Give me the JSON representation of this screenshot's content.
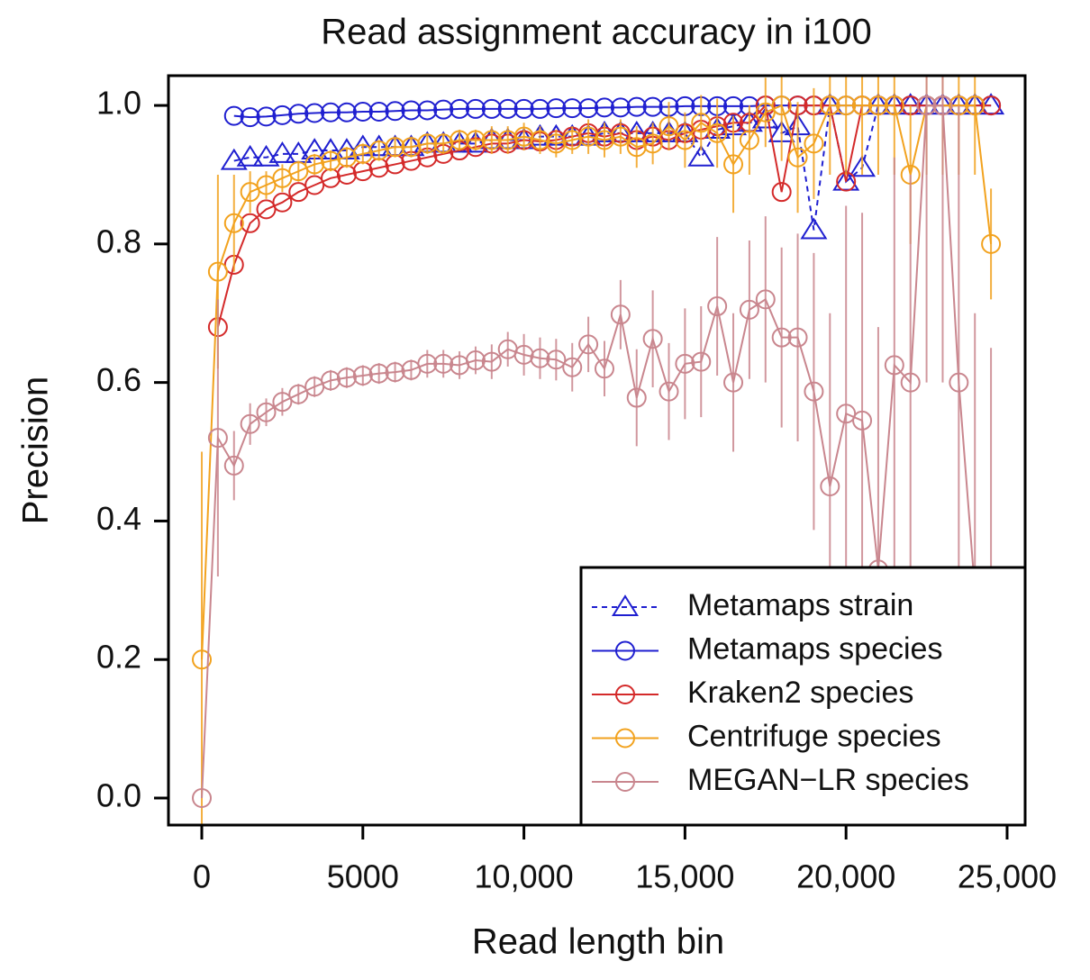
{
  "chart_data": {
    "type": "line",
    "title": "Read assignment accuracy in  i100",
    "xlabel": "Read length bin",
    "ylabel": "Precision",
    "x": [
      0,
      500,
      1000,
      1500,
      2000,
      2500,
      3000,
      3500,
      4000,
      4500,
      5000,
      5500,
      6000,
      6500,
      7000,
      7500,
      8000,
      8500,
      9000,
      9500,
      10000,
      10500,
      11000,
      11500,
      12000,
      12500,
      13000,
      13500,
      14000,
      14500,
      15000,
      15500,
      16000,
      16500,
      17000,
      17500,
      18000,
      18500,
      19000,
      19500,
      20000,
      20500,
      21000,
      21500,
      22000,
      22500,
      23000,
      23500,
      24000,
      24500
    ],
    "xlim": [
      -1035,
      25560
    ],
    "ylim": [
      -0.039,
      1.043
    ],
    "xticks": [
      0,
      5000,
      {
        "value": 10000,
        "label": "10,000"
      },
      {
        "value": 15000,
        "label": "15,000"
      },
      {
        "value": 20000,
        "label": "20,000"
      },
      {
        "value": 25000,
        "label": "25,000"
      }
    ],
    "yticks": [
      {
        "value": 0,
        "label": "0.0"
      },
      0.2,
      0.4,
      0.6,
      0.8,
      {
        "value": 1,
        "label": "1.0"
      }
    ],
    "legend": "bottom-right",
    "series": [
      {
        "name": "Metamaps strain",
        "color": "#1f1fd0",
        "marker": "triangle",
        "linestyle": "dashed",
        "values": [
          null,
          null,
          0.92,
          0.925,
          0.925,
          0.93,
          0.93,
          0.935,
          0.935,
          0.935,
          0.94,
          0.94,
          0.94,
          0.94,
          0.945,
          0.945,
          0.945,
          0.945,
          0.95,
          0.95,
          0.95,
          0.955,
          0.955,
          0.955,
          0.955,
          0.96,
          0.96,
          0.96,
          0.96,
          0.96,
          0.96,
          0.925,
          0.965,
          0.97,
          0.975,
          0.98,
          0.96,
          0.97,
          0.82,
          1.0,
          0.89,
          0.91,
          1.0,
          1.0,
          1.0,
          1.0,
          1.0,
          1.0,
          1.0,
          1.0
        ]
      },
      {
        "name": "Metamaps species",
        "color": "#1f1fd0",
        "marker": "circle",
        "linestyle": "solid",
        "values": [
          null,
          null,
          0.985,
          0.983,
          0.984,
          0.986,
          0.988,
          0.989,
          0.99,
          0.99,
          0.991,
          0.991,
          0.992,
          0.993,
          0.993,
          0.994,
          0.995,
          0.995,
          0.995,
          0.995,
          0.995,
          0.995,
          0.996,
          0.996,
          0.996,
          0.997,
          0.997,
          0.998,
          0.998,
          0.998,
          0.999,
          0.999,
          0.999,
          0.999,
          0.999,
          1.0,
          1.0,
          1.0,
          1.0,
          1.0,
          1.0,
          1.0,
          1.0,
          1.0,
          1.0,
          1.0,
          1.0,
          1.0,
          1.0,
          1.0
        ]
      },
      {
        "name": "Kraken2 species",
        "color": "#d42a2a",
        "marker": "circle",
        "linestyle": "solid",
        "values": [
          null,
          0.68,
          0.77,
          0.83,
          0.85,
          0.86,
          0.875,
          0.885,
          0.895,
          0.9,
          0.905,
          0.91,
          0.915,
          0.92,
          0.925,
          0.93,
          0.935,
          0.94,
          0.945,
          0.945,
          0.95,
          0.948,
          0.95,
          0.955,
          0.96,
          0.955,
          0.96,
          0.95,
          0.955,
          0.95,
          0.96,
          0.965,
          0.97,
          0.975,
          0.975,
          1.0,
          0.875,
          1.0,
          1.0,
          1.0,
          0.89,
          1.0,
          1.0,
          1.0,
          1.0,
          1.0,
          1.0,
          1.0,
          1.0,
          1.0
        ]
      },
      {
        "name": "Centrifuge species",
        "color": "#f2a21e",
        "marker": "circle",
        "linestyle": "solid",
        "values": [
          0.2,
          0.76,
          0.83,
          0.875,
          0.885,
          0.895,
          0.905,
          0.915,
          0.92,
          0.925,
          0.93,
          0.935,
          0.94,
          0.94,
          0.945,
          0.945,
          0.95,
          0.95,
          0.95,
          0.95,
          0.955,
          0.95,
          0.945,
          0.95,
          0.955,
          0.95,
          0.955,
          0.94,
          0.945,
          0.97,
          0.95,
          0.975,
          0.96,
          0.915,
          0.95,
          0.99,
          1.0,
          0.925,
          0.945,
          1.0,
          1.0,
          1.0,
          1.0,
          1.0,
          0.9,
          1.0,
          1.0,
          1.0,
          1.0,
          0.8
        ],
        "errors": [
          0.3,
          0.14,
          0.07,
          0.03,
          0.02,
          0.02,
          0.015,
          0.015,
          0.015,
          0.015,
          0.015,
          0.015,
          0.015,
          0.015,
          0.015,
          0.015,
          0.015,
          0.015,
          0.02,
          0.02,
          0.02,
          0.02,
          0.02,
          0.02,
          0.025,
          0.025,
          0.025,
          0.03,
          0.03,
          0.035,
          0.04,
          0.04,
          0.05,
          0.07,
          0.05,
          0.05,
          0.08,
          0.08,
          0.08,
          0.1,
          0.1,
          0.1,
          0.1,
          0.1,
          0.1,
          0.1,
          0.1,
          0.1,
          0.1,
          0.08
        ]
      },
      {
        "name": "MEGAN−LR species",
        "color": "#c9868e",
        "marker": "circle",
        "linestyle": "solid",
        "values": [
          0.0,
          0.52,
          0.48,
          0.54,
          0.557,
          0.572,
          0.583,
          0.594,
          0.603,
          0.607,
          0.61,
          0.613,
          0.615,
          0.618,
          0.627,
          0.627,
          0.625,
          0.632,
          0.63,
          0.648,
          0.64,
          0.635,
          0.633,
          0.622,
          0.655,
          0.62,
          0.698,
          0.578,
          0.663,
          0.587,
          0.627,
          0.63,
          0.71,
          0.6,
          0.705,
          0.72,
          0.665,
          0.665,
          0.587,
          0.45,
          0.555,
          0.545,
          0.33,
          0.625,
          0.6,
          1.0,
          1.0,
          0.6,
          0.3,
          0.25
        ],
        "errors": [
          0.0,
          0.2,
          0.05,
          0.03,
          0.02,
          0.02,
          0.015,
          0.015,
          0.015,
          0.015,
          0.015,
          0.015,
          0.015,
          0.015,
          0.02,
          0.02,
          0.02,
          0.02,
          0.025,
          0.025,
          0.03,
          0.03,
          0.03,
          0.035,
          0.04,
          0.04,
          0.05,
          0.07,
          0.07,
          0.07,
          0.08,
          0.08,
          0.1,
          0.1,
          0.1,
          0.12,
          0.13,
          0.15,
          0.2,
          0.25,
          0.3,
          0.3,
          0.35,
          0.3,
          0.3,
          0.4,
          0.4,
          0.4,
          0.4,
          0.4
        ]
      }
    ]
  }
}
